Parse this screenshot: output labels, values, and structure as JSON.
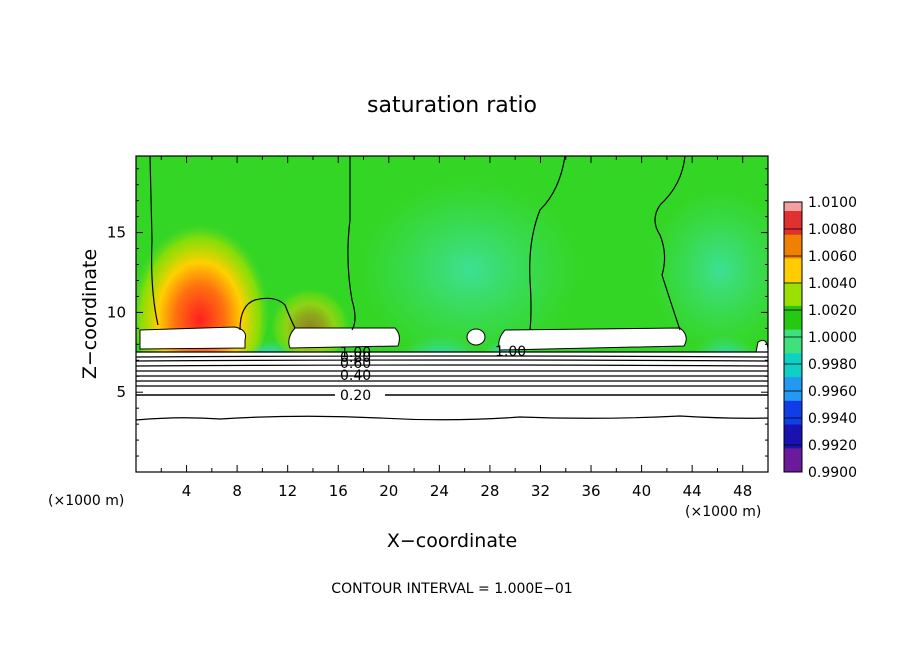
{
  "chart_data": {
    "type": "heatmap",
    "title": "saturation ratio",
    "xlabel": "X−coordinate",
    "ylabel": "Z−coordinate",
    "x_unit_label": "(×1000 m)",
    "x_unit_label_right": "(×1000 m)",
    "xlim": [
      0,
      50
    ],
    "ylim": [
      0,
      19.8
    ],
    "x_ticks": [
      "4",
      "8",
      "12",
      "16",
      "20",
      "24",
      "28",
      "32",
      "36",
      "40",
      "44",
      "48"
    ],
    "y_ticks": [
      "5",
      "10",
      "15"
    ],
    "colorbar": {
      "labels": [
        "1.0100",
        "1.0080",
        "1.0060",
        "1.0040",
        "1.0020",
        "1.0000",
        "0.9980",
        "0.9960",
        "0.9940",
        "0.9920",
        "0.9900"
      ],
      "colors": [
        "#e03030",
        "#f08000",
        "#ffcc00",
        "#9be000",
        "#27c812",
        "#3ee17c",
        "#0ed1c5",
        "#2499f1",
        "#0f3ee6",
        "#1a12b0",
        "#6a1a9a"
      ],
      "top_color": "#f2a0a0"
    },
    "contour_labels": [
      "1.00",
      "0.80",
      "0.60",
      "0.40",
      "0.20",
      "1.00"
    ],
    "footer": "CONTOUR INTERVAL = 1.000E−01"
  }
}
